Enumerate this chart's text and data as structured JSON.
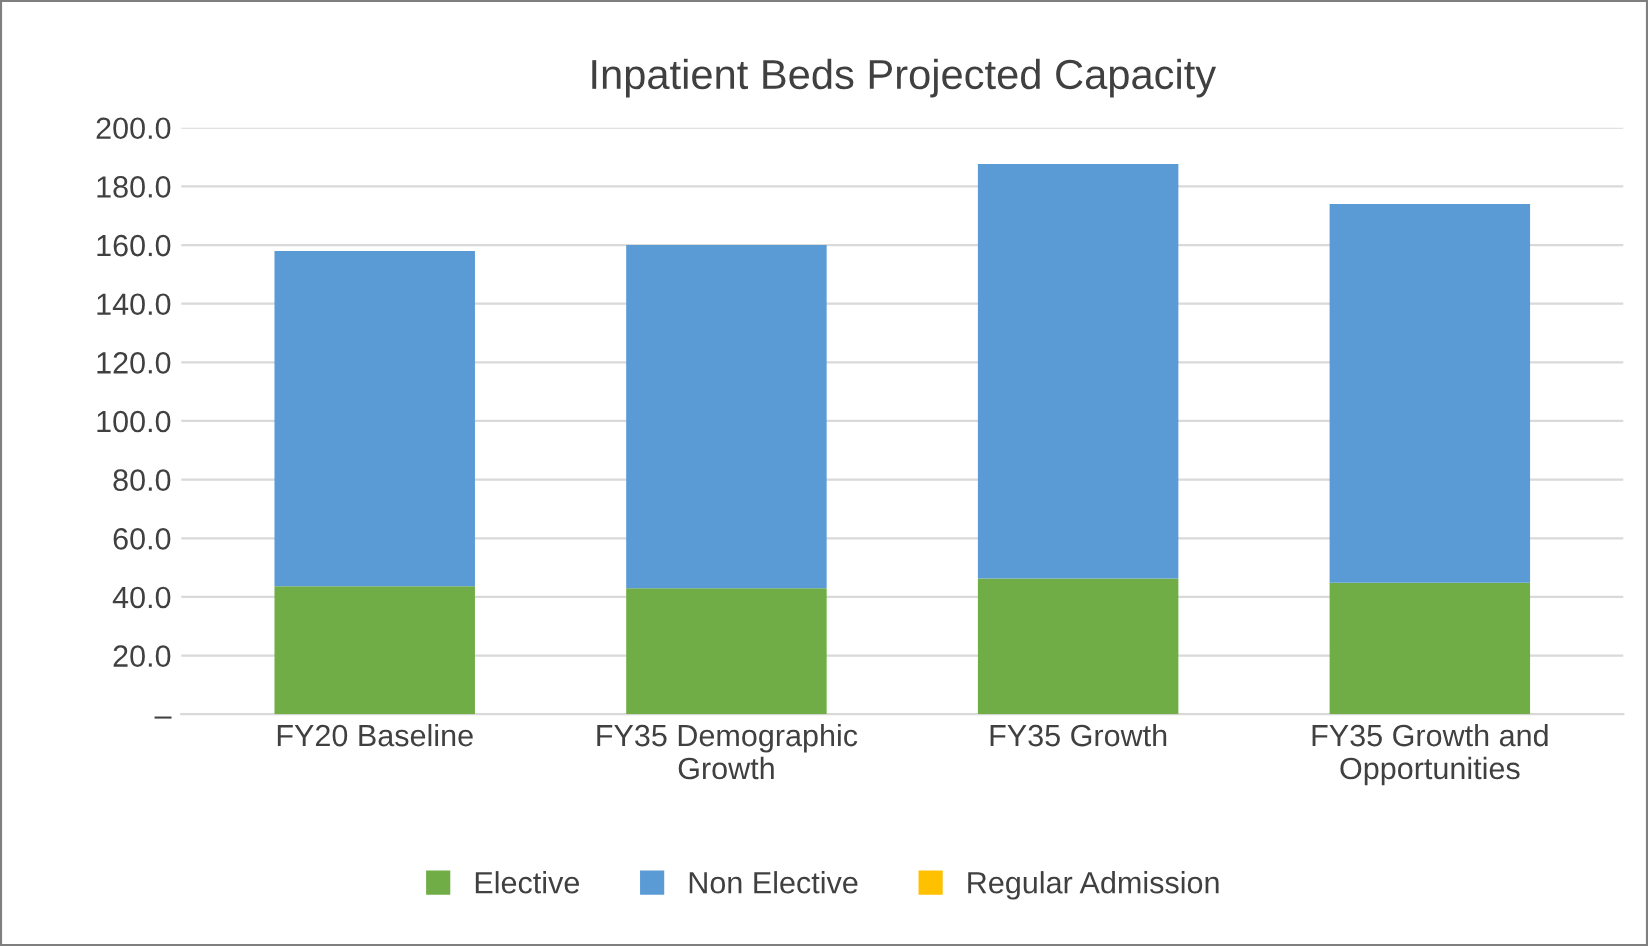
{
  "chart_data": {
    "type": "bar",
    "title": "Inpatient Beds Projected Capacity",
    "categories": [
      "FY20 Baseline",
      "FY35 Demographic\nGrowth",
      "FY35 Growth",
      "FY35 Growth and\nOpportunities"
    ],
    "stacked": true,
    "series": [
      {
        "name": "Elective",
        "color": "#70ad47",
        "values": [
          43.6,
          43,
          46.3,
          44.8
        ]
      },
      {
        "name": "Non Elective",
        "color": "#5b9bd5",
        "values": [
          114.4,
          117,
          141.3,
          129.2
        ]
      },
      {
        "name": "Regular Admission",
        "color": "#ffc000",
        "values": [
          0,
          0,
          0,
          0
        ]
      }
    ],
    "ylim": [
      0,
      200
    ],
    "yticks": [
      {
        "value": 0,
        "label": "–"
      },
      {
        "value": 20,
        "label": "20.0"
      },
      {
        "value": 40,
        "label": "40.0"
      },
      {
        "value": 60,
        "label": "60.0"
      },
      {
        "value": 80,
        "label": "80.0"
      },
      {
        "value": 100,
        "label": "100.0"
      },
      {
        "value": 120,
        "label": "120.0"
      },
      {
        "value": 140,
        "label": "140.0"
      },
      {
        "value": 160,
        "label": "160.0"
      },
      {
        "value": 180,
        "label": "180.0"
      },
      {
        "value": 200,
        "label": "200.0"
      }
    ],
    "grid": "y",
    "legend": "bottom"
  }
}
